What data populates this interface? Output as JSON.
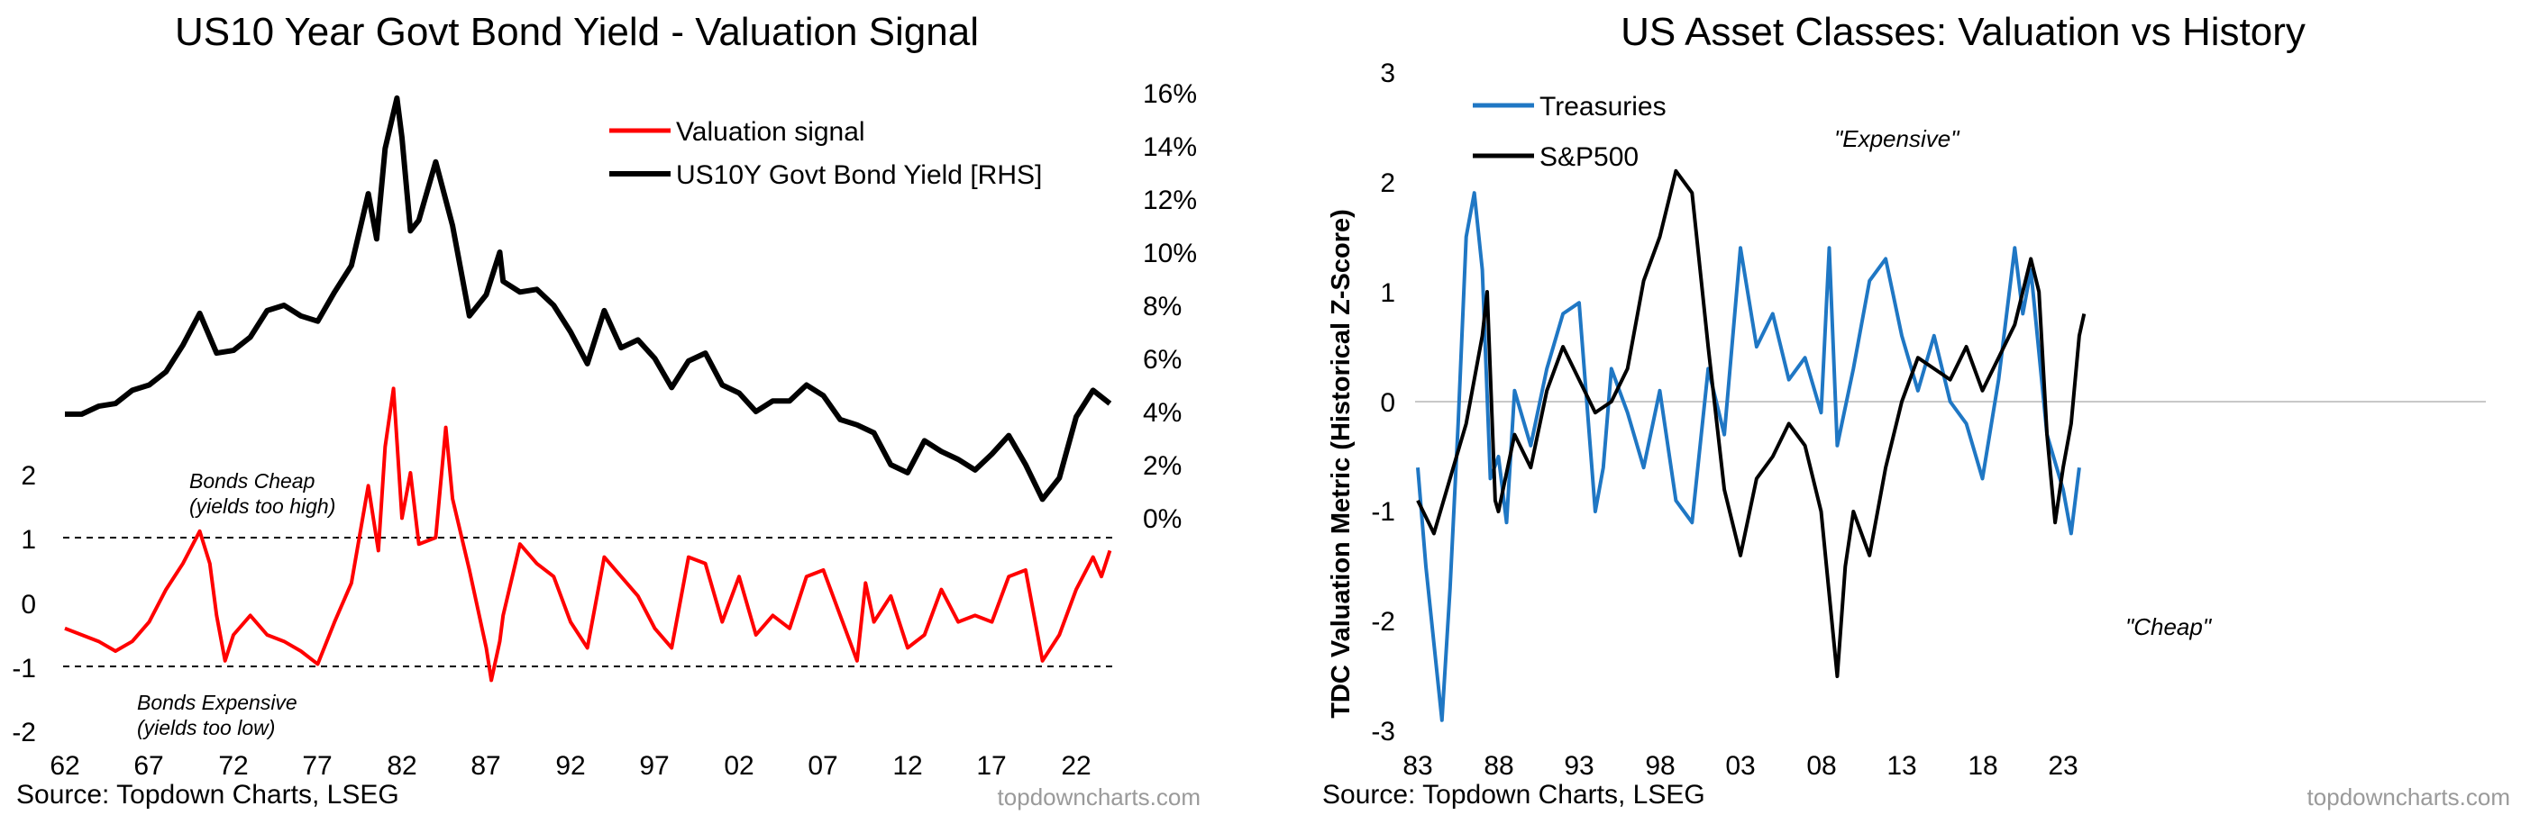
{
  "charts": [
    {
      "title": "US10 Year Govt Bond Yield - Valuation Signal",
      "source": "Source: Topdown Charts, LSEG",
      "watermark": "topdowncharts.com",
      "legend": [
        {
          "label": "Valuation signal",
          "color": "#ff0000"
        },
        {
          "label": "US10Y Govt Bond Yield [RHS]",
          "color": "#000000"
        }
      ],
      "x_ticks": [
        "62",
        "67",
        "72",
        "77",
        "82",
        "87",
        "92",
        "97",
        "02",
        "07",
        "12",
        "17",
        "22"
      ],
      "left_ticks": [
        "2",
        "1",
        "0",
        "-1",
        "-2"
      ],
      "right_ticks": [
        "16%",
        "14%",
        "12%",
        "10%",
        "8%",
        "6%",
        "4%",
        "2%",
        "0%"
      ],
      "annotations": [
        {
          "line1": "Bonds Cheap",
          "line2": "(yields too high)"
        },
        {
          "line1": "Bonds Expensive",
          "line2": "(yields too low)"
        }
      ]
    },
    {
      "title": "US Asset Classes: Valuation vs History",
      "source": "Source: Topdown Charts, LSEG",
      "watermark": "topdowncharts.com",
      "ylabel": "TDC Valuation Metric (Historical Z-Score)",
      "legend": [
        {
          "label": "Treasuries",
          "color": "#1f77c4"
        },
        {
          "label": "S&P500",
          "color": "#000000"
        }
      ],
      "x_ticks": [
        "83",
        "88",
        "93",
        "98",
        "03",
        "08",
        "13",
        "18",
        "23"
      ],
      "y_ticks": [
        "3",
        "2",
        "1",
        "0",
        "-1",
        "-2",
        "-3"
      ],
      "annotations": [
        {
          "text": "\"Expensive\""
        },
        {
          "text": "\"Cheap\""
        }
      ]
    }
  ],
  "chart_data": [
    {
      "type": "line",
      "title": "US10 Year Govt Bond Yield - Valuation Signal",
      "x_range": [
        1962,
        2024.5
      ],
      "left_axis": {
        "ylim": [
          -2,
          2.5
        ],
        "reference_lines": [
          1,
          -1
        ]
      },
      "right_axis": {
        "ylim": [
          -2.5,
          16
        ],
        "unit": "%"
      },
      "series": [
        {
          "name": "Valuation signal",
          "axis": "left",
          "points": [
            [
              1962,
              -0.4
            ],
            [
              1963,
              -0.5
            ],
            [
              1964,
              -0.6
            ],
            [
              1965,
              -0.75
            ],
            [
              1966,
              -0.6
            ],
            [
              1967,
              -0.3
            ],
            [
              1968,
              0.2
            ],
            [
              1969,
              0.6
            ],
            [
              1970,
              1.1
            ],
            [
              1970.6,
              0.6
            ],
            [
              1971,
              -0.2
            ],
            [
              1971.5,
              -0.9
            ],
            [
              1972,
              -0.5
            ],
            [
              1973,
              -0.2
            ],
            [
              1974,
              -0.5
            ],
            [
              1975,
              -0.6
            ],
            [
              1976,
              -0.75
            ],
            [
              1977,
              -0.95
            ],
            [
              1978,
              -0.3
            ],
            [
              1979,
              0.3
            ],
            [
              1980,
              1.8
            ],
            [
              1980.6,
              0.8
            ],
            [
              1981,
              2.4
            ],
            [
              1981.5,
              3.3
            ],
            [
              1982,
              1.3
            ],
            [
              1982.5,
              2.0
            ],
            [
              1983,
              0.9
            ],
            [
              1984,
              1.0
            ],
            [
              1984.6,
              2.7
            ],
            [
              1985,
              1.6
            ],
            [
              1986,
              0.5
            ],
            [
              1987,
              -0.7
            ],
            [
              1987.3,
              -1.2
            ],
            [
              1987.8,
              -0.6
            ],
            [
              1988,
              -0.2
            ],
            [
              1989,
              0.9
            ],
            [
              1990,
              0.6
            ],
            [
              1991,
              0.4
            ],
            [
              1992,
              -0.3
            ],
            [
              1993,
              -0.7
            ],
            [
              1994,
              0.7
            ],
            [
              1995,
              0.4
            ],
            [
              1996,
              0.1
            ],
            [
              1997,
              -0.4
            ],
            [
              1998,
              -0.7
            ],
            [
              1999,
              0.7
            ],
            [
              2000,
              0.6
            ],
            [
              2001,
              -0.3
            ],
            [
              2002,
              0.4
            ],
            [
              2003,
              -0.5
            ],
            [
              2004,
              -0.2
            ],
            [
              2005,
              -0.4
            ],
            [
              2006,
              0.4
            ],
            [
              2007,
              0.5
            ],
            [
              2008,
              -0.2
            ],
            [
              2009,
              -0.9
            ],
            [
              2009.5,
              0.3
            ],
            [
              2010,
              -0.3
            ],
            [
              2011,
              0.1
            ],
            [
              2012,
              -0.7
            ],
            [
              2013,
              -0.5
            ],
            [
              2014,
              0.2
            ],
            [
              2015,
              -0.3
            ],
            [
              2016,
              -0.2
            ],
            [
              2017,
              -0.3
            ],
            [
              2018,
              0.4
            ],
            [
              2019,
              0.5
            ],
            [
              2020,
              -0.9
            ],
            [
              2021,
              -0.5
            ],
            [
              2022,
              0.2
            ],
            [
              2023,
              0.7
            ],
            [
              2023.5,
              0.4
            ],
            [
              2024,
              0.8
            ]
          ]
        },
        {
          "name": "US10Y Govt Bond Yield [RHS]",
          "axis": "right",
          "points": [
            [
              1962,
              3.9
            ],
            [
              1963,
              3.9
            ],
            [
              1964,
              4.2
            ],
            [
              1965,
              4.3
            ],
            [
              1966,
              4.8
            ],
            [
              1967,
              5.0
            ],
            [
              1968,
              5.5
            ],
            [
              1969,
              6.5
            ],
            [
              1970,
              7.7
            ],
            [
              1971,
              6.2
            ],
            [
              1972,
              6.3
            ],
            [
              1973,
              6.8
            ],
            [
              1974,
              7.8
            ],
            [
              1975,
              8.0
            ],
            [
              1976,
              7.6
            ],
            [
              1977,
              7.4
            ],
            [
              1978,
              8.5
            ],
            [
              1979,
              9.5
            ],
            [
              1980,
              12.2
            ],
            [
              1980.5,
              10.5
            ],
            [
              1981,
              13.9
            ],
            [
              1981.7,
              15.8
            ],
            [
              1982,
              14.3
            ],
            [
              1982.5,
              10.8
            ],
            [
              1983,
              11.2
            ],
            [
              1984,
              13.4
            ],
            [
              1985,
              11.0
            ],
            [
              1986,
              7.6
            ],
            [
              1987,
              8.4
            ],
            [
              1987.8,
              10.0
            ],
            [
              1988,
              8.9
            ],
            [
              1989,
              8.5
            ],
            [
              1990,
              8.6
            ],
            [
              1991,
              8.0
            ],
            [
              1992,
              7.0
            ],
            [
              1993,
              5.8
            ],
            [
              1994,
              7.8
            ],
            [
              1995,
              6.4
            ],
            [
              1996,
              6.7
            ],
            [
              1997,
              6.0
            ],
            [
              1998,
              4.9
            ],
            [
              1999,
              5.9
            ],
            [
              2000,
              6.2
            ],
            [
              2001,
              5.0
            ],
            [
              2002,
              4.7
            ],
            [
              2003,
              4.0
            ],
            [
              2004,
              4.4
            ],
            [
              2005,
              4.4
            ],
            [
              2006,
              5.0
            ],
            [
              2007,
              4.6
            ],
            [
              2008,
              3.7
            ],
            [
              2009,
              3.5
            ],
            [
              2010,
              3.2
            ],
            [
              2011,
              2.0
            ],
            [
              2012,
              1.7
            ],
            [
              2013,
              2.9
            ],
            [
              2014,
              2.5
            ],
            [
              2015,
              2.2
            ],
            [
              2016,
              1.8
            ],
            [
              2017,
              2.4
            ],
            [
              2018,
              3.1
            ],
            [
              2019,
              2.0
            ],
            [
              2020,
              0.7
            ],
            [
              2021,
              1.5
            ],
            [
              2022,
              3.8
            ],
            [
              2023,
              4.8
            ],
            [
              2024,
              4.3
            ]
          ]
        }
      ]
    },
    {
      "type": "line",
      "title": "US Asset Classes: Valuation vs History",
      "ylabel": "TDC Valuation Metric (Historical Z-Score)",
      "x_range": [
        1983,
        2024.5
      ],
      "ylim": [
        -3,
        3
      ],
      "reference_lines": [
        0
      ],
      "series": [
        {
          "name": "Treasuries",
          "points": [
            [
              1983,
              -0.6
            ],
            [
              1983.5,
              -1.5
            ],
            [
              1984,
              -2.2
            ],
            [
              1984.5,
              -2.9
            ],
            [
              1985,
              -1.7
            ],
            [
              1985.5,
              -0.2
            ],
            [
              1986,
              1.5
            ],
            [
              1986.5,
              1.9
            ],
            [
              1987,
              1.2
            ],
            [
              1987.5,
              -0.7
            ],
            [
              1988,
              -0.5
            ],
            [
              1988.5,
              -1.1
            ],
            [
              1989,
              0.1
            ],
            [
              1990,
              -0.4
            ],
            [
              1991,
              0.3
            ],
            [
              1992,
              0.8
            ],
            [
              1993,
              0.9
            ],
            [
              1994,
              -1.0
            ],
            [
              1994.5,
              -0.6
            ],
            [
              1995,
              0.3
            ],
            [
              1996,
              -0.1
            ],
            [
              1997,
              -0.6
            ],
            [
              1998,
              0.1
            ],
            [
              1999,
              -0.9
            ],
            [
              2000,
              -1.1
            ],
            [
              2001,
              0.3
            ],
            [
              2002,
              -0.3
            ],
            [
              2003,
              1.4
            ],
            [
              2004,
              0.5
            ],
            [
              2005,
              0.8
            ],
            [
              2006,
              0.2
            ],
            [
              2007,
              0.4
            ],
            [
              2008,
              -0.1
            ],
            [
              2008.5,
              1.4
            ],
            [
              2009,
              -0.4
            ],
            [
              2010,
              0.3
            ],
            [
              2011,
              1.1
            ],
            [
              2012,
              1.3
            ],
            [
              2013,
              0.6
            ],
            [
              2014,
              0.1
            ],
            [
              2015,
              0.6
            ],
            [
              2016,
              0.0
            ],
            [
              2017,
              -0.2
            ],
            [
              2018,
              -0.7
            ],
            [
              2019,
              0.2
            ],
            [
              2020,
              1.4
            ],
            [
              2020.5,
              0.8
            ],
            [
              2021,
              1.2
            ],
            [
              2022,
              -0.3
            ],
            [
              2023,
              -0.8
            ],
            [
              2023.5,
              -1.2
            ],
            [
              2024,
              -0.6
            ]
          ]
        },
        {
          "name": "S&P500",
          "points": [
            [
              1983,
              -0.9
            ],
            [
              1984,
              -1.2
            ],
            [
              1985,
              -0.7
            ],
            [
              1986,
              -0.2
            ],
            [
              1987,
              0.6
            ],
            [
              1987.3,
              1.0
            ],
            [
              1987.8,
              -0.9
            ],
            [
              1988,
              -1.0
            ],
            [
              1989,
              -0.3
            ],
            [
              1990,
              -0.6
            ],
            [
              1991,
              0.1
            ],
            [
              1992,
              0.5
            ],
            [
              1993,
              0.2
            ],
            [
              1994,
              -0.1
            ],
            [
              1995,
              0.0
            ],
            [
              1996,
              0.3
            ],
            [
              1997,
              1.1
            ],
            [
              1998,
              1.5
            ],
            [
              1999,
              2.1
            ],
            [
              2000,
              1.9
            ],
            [
              2001,
              0.5
            ],
            [
              2002,
              -0.8
            ],
            [
              2003,
              -1.4
            ],
            [
              2004,
              -0.7
            ],
            [
              2005,
              -0.5
            ],
            [
              2006,
              -0.2
            ],
            [
              2007,
              -0.4
            ],
            [
              2008,
              -1.0
            ],
            [
              2009,
              -2.5
            ],
            [
              2009.5,
              -1.5
            ],
            [
              2010,
              -1.0
            ],
            [
              2011,
              -1.4
            ],
            [
              2012,
              -0.6
            ],
            [
              2013,
              0.0
            ],
            [
              2014,
              0.4
            ],
            [
              2015,
              0.3
            ],
            [
              2016,
              0.2
            ],
            [
              2017,
              0.5
            ],
            [
              2018,
              0.1
            ],
            [
              2019,
              0.4
            ],
            [
              2020,
              0.7
            ],
            [
              2021,
              1.3
            ],
            [
              2021.5,
              1.0
            ],
            [
              2022,
              -0.3
            ],
            [
              2022.5,
              -1.1
            ],
            [
              2023,
              -0.6
            ],
            [
              2023.5,
              -0.2
            ],
            [
              2024,
              0.6
            ],
            [
              2024.3,
              0.8
            ]
          ]
        }
      ]
    }
  ]
}
